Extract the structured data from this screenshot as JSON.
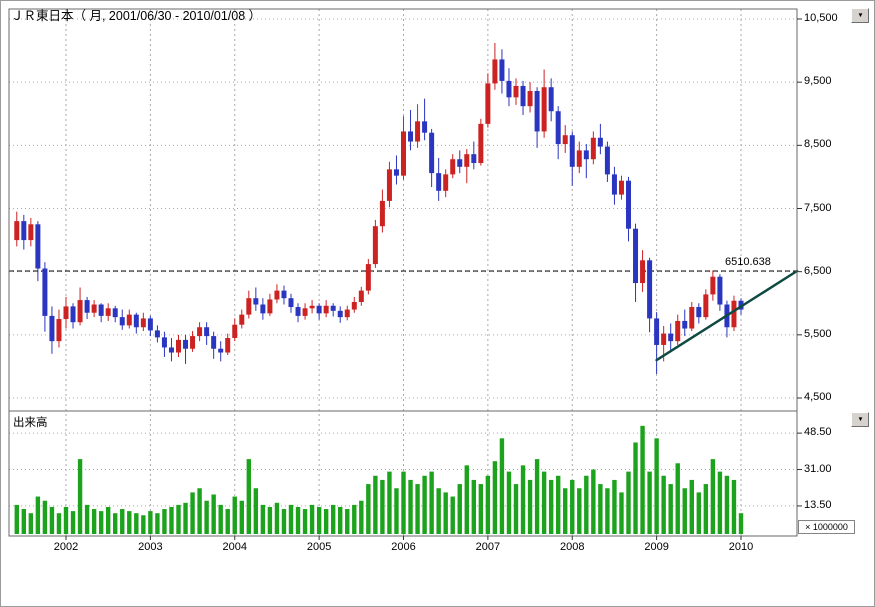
{
  "header": {
    "title": "ＪＲ東日本（ 月, 2001/06/30 - 2010/01/08 ）"
  },
  "panes": {
    "volume_label": "出来高"
  },
  "level_line": {
    "label": "6510.638",
    "value": 6510.638
  },
  "price_axis": {
    "labels": [
      "10,500",
      "9,500",
      "8,500",
      "7,500",
      "6,500",
      "5,500",
      "4,500"
    ],
    "values": [
      10500,
      9500,
      8500,
      7500,
      6500,
      5500,
      4500
    ]
  },
  "volume_axis": {
    "labels": [
      "48.50",
      "31.00",
      "13.50"
    ],
    "values": [
      48.5,
      31.0,
      13.5
    ],
    "multiplier": "× 1000000"
  },
  "x_axis": {
    "year_labels": [
      "2002",
      "2003",
      "2004",
      "2005",
      "2006",
      "2007",
      "2008",
      "2009",
      "2010"
    ]
  },
  "controls": {
    "dropdown_icon": "▼"
  },
  "colors": {
    "up_candle": "#cc2222",
    "down_candle": "#2a35c0",
    "volume_bar": "#1ca21c",
    "trend_line": "#0f4a42",
    "level_line": "#000000",
    "grid": "#a8a8a8",
    "border": "#6a6a6a",
    "tick": "#333333"
  },
  "chart_data": {
    "type": "candlestick",
    "title": "ＪＲ東日本 月足 2001/06/30 - 2010/01/08",
    "ohlc_format": "open,high,low,close",
    "price_ylim": [
      4400,
      10660
    ],
    "price_ticks": [
      10500,
      9500,
      8500,
      7500,
      6500,
      5500,
      4500
    ],
    "volume_ticks": [
      48.5,
      31.0,
      13.5
    ],
    "volume_unit_multiplier": 1000000,
    "level_line_value": 6510.638,
    "trendline": {
      "from_month": "2009-01",
      "from_price": 5100,
      "to_month": "right_edge",
      "to_price": 6510.638
    },
    "months": [
      "2001-06",
      "2001-07",
      "2001-08",
      "2001-09",
      "2001-10",
      "2001-11",
      "2001-12",
      "2002-01",
      "2002-02",
      "2002-03",
      "2002-04",
      "2002-05",
      "2002-06",
      "2002-07",
      "2002-08",
      "2002-09",
      "2002-10",
      "2002-11",
      "2002-12",
      "2003-01",
      "2003-02",
      "2003-03",
      "2003-04",
      "2003-05",
      "2003-06",
      "2003-07",
      "2003-08",
      "2003-09",
      "2003-10",
      "2003-11",
      "2003-12",
      "2004-01",
      "2004-02",
      "2004-03",
      "2004-04",
      "2004-05",
      "2004-06",
      "2004-07",
      "2004-08",
      "2004-09",
      "2004-10",
      "2004-11",
      "2004-12",
      "2005-01",
      "2005-02",
      "2005-03",
      "2005-04",
      "2005-05",
      "2005-06",
      "2005-07",
      "2005-08",
      "2005-09",
      "2005-10",
      "2005-11",
      "2005-12",
      "2006-01",
      "2006-02",
      "2006-03",
      "2006-04",
      "2006-05",
      "2006-06",
      "2006-07",
      "2006-08",
      "2006-09",
      "2006-10",
      "2006-11",
      "2006-12",
      "2007-01",
      "2007-02",
      "2007-03",
      "2007-04",
      "2007-05",
      "2007-06",
      "2007-07",
      "2007-08",
      "2007-09",
      "2007-10",
      "2007-11",
      "2007-12",
      "2008-01",
      "2008-02",
      "2008-03",
      "2008-04",
      "2008-05",
      "2008-06",
      "2008-07",
      "2008-08",
      "2008-09",
      "2008-10",
      "2008-11",
      "2008-12",
      "2009-01",
      "2009-02",
      "2009-03",
      "2009-04",
      "2009-05",
      "2009-06",
      "2009-07",
      "2009-08",
      "2009-09",
      "2009-10",
      "2009-11",
      "2009-12",
      "2010-01"
    ],
    "ohlc": [
      [
        7000,
        7450,
        6900,
        7300
      ],
      [
        7300,
        7400,
        6850,
        7000
      ],
      [
        7000,
        7350,
        6900,
        7250
      ],
      [
        7250,
        7300,
        6350,
        6550
      ],
      [
        6550,
        6650,
        5550,
        5800
      ],
      [
        5800,
        5950,
        5200,
        5400
      ],
      [
        5400,
        5900,
        5300,
        5750
      ],
      [
        5750,
        6100,
        5600,
        5950
      ],
      [
        5950,
        6000,
        5600,
        5700
      ],
      [
        5700,
        6250,
        5650,
        6050
      ],
      [
        6050,
        6100,
        5750,
        5850
      ],
      [
        5850,
        6050,
        5780,
        5980
      ],
      [
        5980,
        6000,
        5700,
        5800
      ],
      [
        5800,
        6000,
        5720,
        5920
      ],
      [
        5920,
        5960,
        5700,
        5780
      ],
      [
        5780,
        5900,
        5580,
        5650
      ],
      [
        5650,
        5900,
        5600,
        5820
      ],
      [
        5820,
        5850,
        5520,
        5620
      ],
      [
        5620,
        5850,
        5560,
        5760
      ],
      [
        5760,
        5800,
        5480,
        5570
      ],
      [
        5570,
        5650,
        5380,
        5460
      ],
      [
        5460,
        5550,
        5150,
        5300
      ],
      [
        5300,
        5450,
        5080,
        5220
      ],
      [
        5220,
        5500,
        5150,
        5420
      ],
      [
        5420,
        5500,
        5040,
        5280
      ],
      [
        5280,
        5560,
        5230,
        5480
      ],
      [
        5480,
        5700,
        5400,
        5620
      ],
      [
        5620,
        5700,
        5340,
        5480
      ],
      [
        5480,
        5550,
        5120,
        5280
      ],
      [
        5280,
        5400,
        5080,
        5220
      ],
      [
        5220,
        5520,
        5180,
        5450
      ],
      [
        5450,
        5760,
        5400,
        5660
      ],
      [
        5660,
        5900,
        5600,
        5820
      ],
      [
        5820,
        6200,
        5760,
        6080
      ],
      [
        6080,
        6250,
        5880,
        5980
      ],
      [
        5980,
        6080,
        5740,
        5840
      ],
      [
        5840,
        6150,
        5800,
        6060
      ],
      [
        6060,
        6300,
        6000,
        6200
      ],
      [
        6200,
        6280,
        5980,
        6080
      ],
      [
        6080,
        6150,
        5850,
        5940
      ],
      [
        5940,
        6000,
        5700,
        5800
      ],
      [
        5800,
        6000,
        5740,
        5920
      ],
      [
        5920,
        6050,
        5840,
        5960
      ],
      [
        5960,
        6000,
        5740,
        5840
      ],
      [
        5840,
        6050,
        5780,
        5960
      ],
      [
        5960,
        6000,
        5790,
        5880
      ],
      [
        5880,
        5950,
        5690,
        5780
      ],
      [
        5780,
        5960,
        5730,
        5900
      ],
      [
        5900,
        6100,
        5850,
        6020
      ],
      [
        6020,
        6260,
        5960,
        6200
      ],
      [
        6200,
        6700,
        6140,
        6620
      ],
      [
        6620,
        7320,
        6560,
        7220
      ],
      [
        7220,
        7800,
        7120,
        7620
      ],
      [
        7620,
        8240,
        7520,
        8120
      ],
      [
        8120,
        8340,
        7880,
        8020
      ],
      [
        8020,
        8960,
        7960,
        8720
      ],
      [
        8720,
        9060,
        8420,
        8560
      ],
      [
        8560,
        9150,
        8460,
        8880
      ],
      [
        8880,
        9240,
        8580,
        8700
      ],
      [
        8700,
        8760,
        7840,
        8060
      ],
      [
        8060,
        8300,
        7620,
        7780
      ],
      [
        7780,
        8120,
        7680,
        8040
      ],
      [
        8040,
        8360,
        7980,
        8280
      ],
      [
        8280,
        8420,
        8060,
        8160
      ],
      [
        8160,
        8440,
        7900,
        8360
      ],
      [
        8360,
        8560,
        8120,
        8220
      ],
      [
        8220,
        8920,
        8180,
        8840
      ],
      [
        8840,
        9640,
        8780,
        9480
      ],
      [
        9480,
        10120,
        9380,
        9860
      ],
      [
        9860,
        10020,
        9320,
        9520
      ],
      [
        9520,
        9720,
        9120,
        9260
      ],
      [
        9260,
        9560,
        9140,
        9440
      ],
      [
        9440,
        9520,
        8980,
        9120
      ],
      [
        9120,
        9500,
        9020,
        9360
      ],
      [
        9360,
        9420,
        8460,
        8720
      ],
      [
        8720,
        9700,
        8620,
        9420
      ],
      [
        9420,
        9560,
        8880,
        9040
      ],
      [
        9040,
        9120,
        8280,
        8520
      ],
      [
        8520,
        8820,
        8380,
        8660
      ],
      [
        8660,
        8720,
        7860,
        8160
      ],
      [
        8160,
        8560,
        8060,
        8420
      ],
      [
        8420,
        8520,
        7980,
        8280
      ],
      [
        8280,
        8720,
        8200,
        8620
      ],
      [
        8620,
        8840,
        8360,
        8480
      ],
      [
        8480,
        8560,
        7920,
        8040
      ],
      [
        8040,
        8160,
        7560,
        7720
      ],
      [
        7720,
        8020,
        7640,
        7940
      ],
      [
        7940,
        8000,
        6980,
        7180
      ],
      [
        7180,
        7260,
        6020,
        6320
      ],
      [
        6320,
        6840,
        6180,
        6680
      ],
      [
        6680,
        6720,
        5540,
        5760
      ],
      [
        5760,
        5860,
        4880,
        5340
      ],
      [
        5340,
        5640,
        5080,
        5520
      ],
      [
        5520,
        5680,
        5220,
        5400
      ],
      [
        5400,
        5820,
        5340,
        5720
      ],
      [
        5720,
        5900,
        5480,
        5600
      ],
      [
        5600,
        6020,
        5560,
        5940
      ],
      [
        5940,
        6000,
        5680,
        5780
      ],
      [
        5780,
        6220,
        5740,
        6140
      ],
      [
        6140,
        6520,
        6040,
        6420
      ],
      [
        6420,
        6460,
        5880,
        5980
      ],
      [
        5980,
        6040,
        5460,
        5620
      ],
      [
        5620,
        6120,
        5560,
        6040
      ],
      [
        6040,
        6080,
        5820,
        5900
      ]
    ],
    "volume": [
      14,
      12,
      10,
      18,
      16,
      13,
      10,
      13,
      11,
      36,
      14,
      12,
      11,
      13,
      10,
      12,
      11,
      10,
      9,
      11,
      10,
      12,
      13,
      14,
      15,
      20,
      22,
      16,
      19,
      14,
      12,
      18,
      16,
      36,
      22,
      14,
      13,
      15,
      12,
      14,
      13,
      12,
      14,
      13,
      12,
      14,
      13,
      12,
      14,
      16,
      24,
      28,
      26,
      30,
      22,
      30,
      26,
      24,
      28,
      30,
      22,
      20,
      18,
      24,
      33,
      26,
      24,
      28,
      35,
      46,
      30,
      24,
      33,
      26,
      36,
      30,
      26,
      28,
      22,
      26,
      22,
      28,
      31,
      24,
      22,
      26,
      20,
      30,
      44,
      52,
      30,
      46,
      28,
      24,
      34,
      22,
      26,
      20,
      24,
      36,
      30,
      28,
      26,
      10
    ]
  }
}
